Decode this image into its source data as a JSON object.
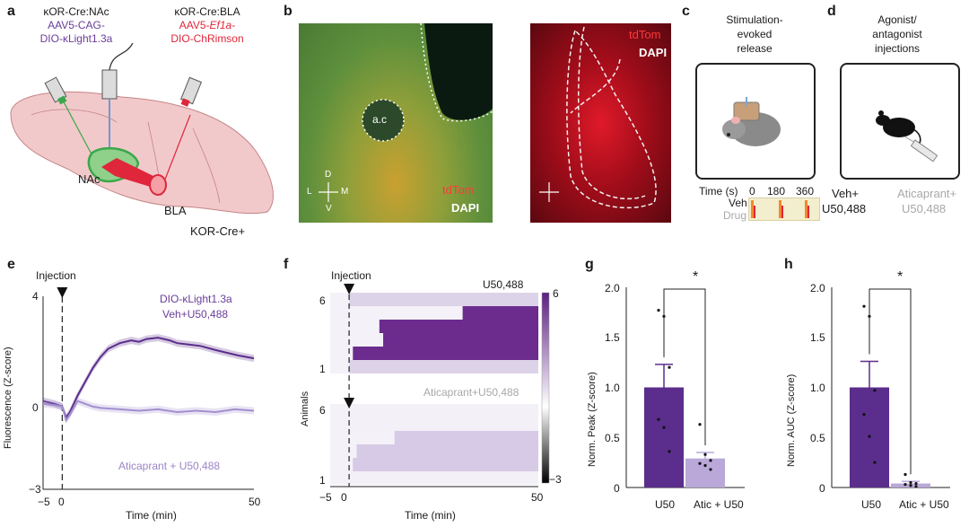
{
  "panels": {
    "a": "a",
    "b": "b",
    "c": "c",
    "d": "d",
    "e": "e",
    "f": "f",
    "g": "g",
    "h": "h"
  },
  "panel_a": {
    "left_title": "κOR-Cre:NAc",
    "left_line1": "AAV5-CAG-",
    "left_line2": "DIO-κLight1.3a",
    "right_title": "κOR-Cre:BLA",
    "right_line1a": "AAV5-",
    "right_line1b": "Ef1a",
    "right_line1c": "-",
    "right_line2": "DIO-ChRimson",
    "nac": "NAc",
    "bla": "BLA",
    "mouse_line": "KOR-Cre+",
    "colors": {
      "brain": "#f0c7c9",
      "nac": "#3aa84a",
      "bla": "#e0263a",
      "purple": "#6a3d9a"
    }
  },
  "panel_b": {
    "ac": "a.c",
    "d": "D",
    "v": "V",
    "l": "L",
    "m": "M",
    "left_labels": [
      "tdTom",
      "DAPI"
    ],
    "right_labels": [
      "tdTom",
      "DAPI"
    ]
  },
  "panel_c": {
    "title1": "Stimulation-",
    "title2": "evoked",
    "title3": "release",
    "time_label": "Time (s)",
    "t0": "0",
    "t1": "180",
    "t2": "360",
    "veh": "Veh",
    "drug": "Drug"
  },
  "panel_d": {
    "title1": "Agonist/",
    "title2": "antagonist",
    "title3": "injections",
    "cond1a": "Veh+",
    "cond1b": "U50,488",
    "cond2a": "Aticaprant+",
    "cond2b": "U50,488"
  },
  "panel_e": {
    "injection": "Injection",
    "legend1a": "DIO-κLight1.3a",
    "legend1b": "Veh+U50,488",
    "legend2": "Aticaprant + U50,488",
    "ylabel": "Fluorescence (Z-score)",
    "xlabel": "Time (min)",
    "yticks": [
      "4",
      "0",
      "−3"
    ],
    "xticks": [
      "−5",
      "0",
      "50"
    ],
    "chart_data": {
      "type": "line",
      "xlim": [
        -5,
        50
      ],
      "ylim": [
        -3,
        4
      ],
      "series": [
        {
          "name": "Veh+U50,488",
          "color": "#5b2d8c",
          "x": [
            -5,
            -2,
            0,
            1,
            2,
            4,
            6,
            8,
            10,
            12,
            15,
            18,
            20,
            22,
            25,
            28,
            30,
            33,
            36,
            40,
            43,
            46,
            50
          ],
          "y": [
            0.2,
            0.1,
            0,
            -0.4,
            -0.2,
            0.4,
            0.9,
            1.4,
            1.8,
            2.1,
            2.3,
            2.4,
            2.35,
            2.45,
            2.5,
            2.4,
            2.3,
            2.25,
            2.2,
            2.05,
            1.95,
            1.85,
            1.75
          ]
        },
        {
          "name": "Aticaprant + U50,488",
          "color": "#a38fcf",
          "x": [
            -5,
            -2,
            0,
            1,
            2,
            4,
            6,
            8,
            10,
            15,
            20,
            25,
            30,
            35,
            40,
            45,
            50
          ],
          "y": [
            0.1,
            0.05,
            0,
            -0.5,
            -0.3,
            0.2,
            0.1,
            0,
            -0.05,
            -0.1,
            -0.15,
            -0.1,
            -0.2,
            -0.15,
            -0.2,
            -0.1,
            -0.15
          ]
        }
      ]
    }
  },
  "panel_f": {
    "injection": "Injection",
    "top_title": "U50,488",
    "bottom_title": "Aticaprant+U50,488",
    "ylabel": "Animals",
    "xlabel": "Time (min)",
    "row_top": "6",
    "row_bottom": "1",
    "xticks": [
      "−5",
      "0",
      "50"
    ],
    "cbar_max": "6",
    "cbar_min": "−3",
    "chart_data": {
      "type": "heatmap",
      "xlim": [
        -5,
        50
      ],
      "clim": [
        -3,
        6
      ],
      "top_onsets_min": [
        60,
        30,
        8,
        9,
        1,
        60
      ],
      "bottom_onsets_min": [
        60,
        60,
        12,
        2,
        1,
        60
      ]
    }
  },
  "panel_g": {
    "ylabel": "Norm. Peak (Z-score)",
    "sig": "*",
    "yticks": [
      "2.0",
      "1.5",
      "1.0",
      "0.5",
      "0"
    ],
    "chart_data": {
      "type": "bar",
      "categories": [
        "U50",
        "Atic + U50"
      ],
      "values": [
        1.0,
        0.29
      ],
      "errors": [
        0.23,
        0.06
      ],
      "ylim": [
        0,
        2.0
      ],
      "points": [
        [
          1.77,
          1.71,
          1.2,
          0.68,
          0.6,
          0.36
        ],
        [
          0.63,
          0.33,
          0.27,
          0.24,
          0.22,
          0.18
        ]
      ]
    }
  },
  "panel_h": {
    "ylabel": "Norm. AUC (Z-score)",
    "sig": "*",
    "yticks": [
      "2.0",
      "1.5",
      "1.0",
      "0.5",
      "0"
    ],
    "chart_data": {
      "type": "bar",
      "categories": [
        "U50",
        "Atic + U50"
      ],
      "values": [
        1.0,
        0.04
      ],
      "errors": [
        0.26,
        0.02
      ],
      "ylim": [
        0,
        2.0
      ],
      "points": [
        [
          1.81,
          1.71,
          0.97,
          0.73,
          0.51,
          0.25
        ],
        [
          0.13,
          0.05,
          0.04,
          0.03,
          0.02,
          0.01
        ]
      ]
    }
  }
}
